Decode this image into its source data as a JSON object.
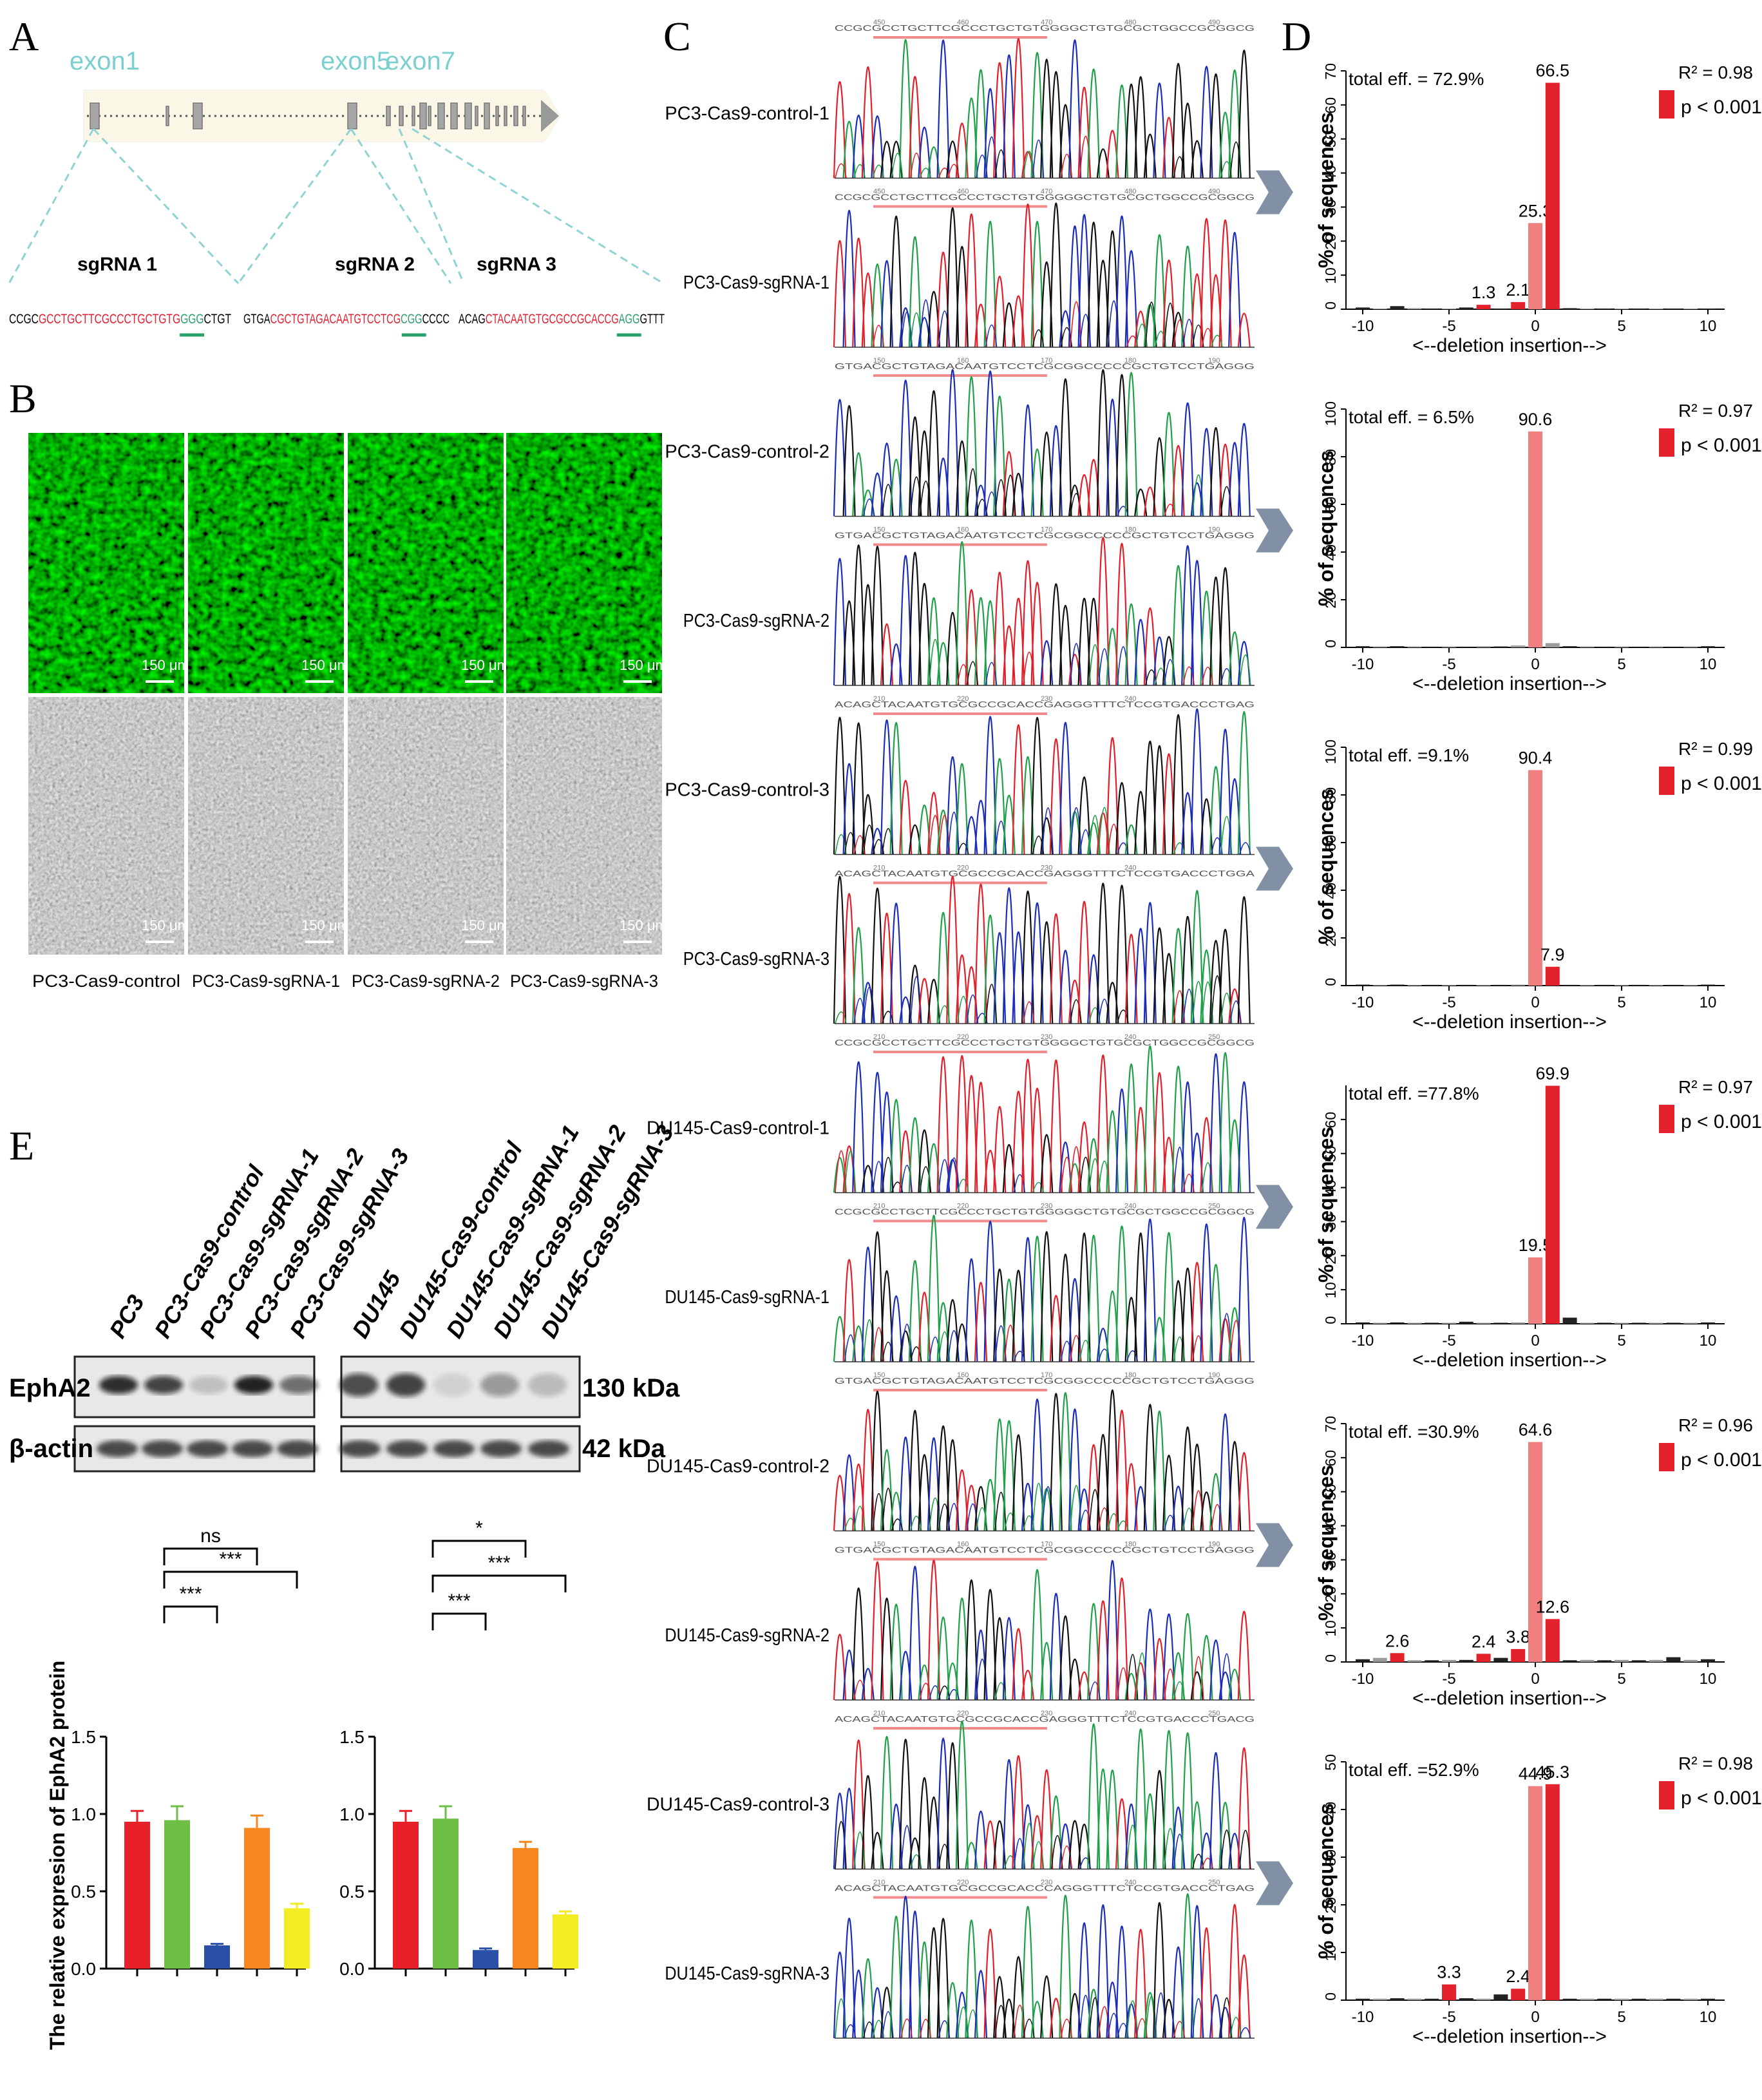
{
  "panels": {
    "A": "A",
    "B": "B",
    "C": "C",
    "D": "D",
    "E": "E"
  },
  "panel_a": {
    "exon_labels": [
      "exon1",
      "exon5",
      "exon7"
    ],
    "sgrnas": [
      {
        "label": "sgRNA 1",
        "pre": "CCGC",
        "target": "GCCTGCTTCGCCCTGCTGTG",
        "pam": "GGG",
        "post": "CTGT"
      },
      {
        "label": "sgRNA 2",
        "pre": "GTGA",
        "target": "CGCTGTAGACAATGTCCTCG",
        "pam": "CGG",
        "post": "CCCC"
      },
      {
        "label": "sgRNA 3",
        "pre": "ACAG",
        "target": "CTACAATGTGCGCCGCACCG",
        "pam": "AGG",
        "post": "GTTT"
      }
    ]
  },
  "panel_b": {
    "scale_bar": "150 μm",
    "labels": [
      "PC3-Cas9-control",
      "PC3-Cas9-sgRNA-1",
      "PC3-Cas9-sgRNA-2",
      "PC3-Cas9-sgRNA-3"
    ]
  },
  "panel_c": {
    "traces": [
      "PC3-Cas9-control-1",
      "PC3-Cas9-sgRNA-1",
      "PC3-Cas9-control-2",
      "PC3-Cas9-sgRNA-2",
      "PC3-Cas9-control-3",
      "PC3-Cas9-sgRNA-3",
      "DU145-Cas9-control-1",
      "DU145-Cas9-sgRNA-1",
      "DU145-Cas9-control-2",
      "DU145-Cas9-sgRNA-2",
      "DU145-Cas9-control-3",
      "DU145-Cas9-sgRNA-3"
    ],
    "seq_headers": [
      {
        "seq": "CCGCGCCTGCTTCGCCCTGCTGTGGGGCTGTGCGCTGGCCGCGGCG",
        "ticks": [
          "450",
          "460",
          "470",
          "480",
          "490"
        ]
      },
      {
        "seq": "CCGCGCCTGCTTCGCCCTGCTGTGGGGGCTGTGCGCTGGCCGCGGCG",
        "ticks": [
          "450",
          "460",
          "470",
          "480",
          "490"
        ]
      },
      {
        "seq": "GTGACGCTGTAGACAATGTCCTCGCGGCCCCCGCTGTCCTGAGGG",
        "ticks": [
          "150",
          "160",
          "170",
          "180",
          "190"
        ]
      },
      {
        "seq": "GTGACGCTGTAGACAATGTCCTCGCGGCCCCCGCTGTCCTGAGGG",
        "ticks": [
          "150",
          "160",
          "170",
          "180",
          "190"
        ]
      },
      {
        "seq": "ACAGCTACAATGTGCGCCGCACCGAGGGTTTCTCCGTGACCCTGAG",
        "ticks": [
          "210",
          "220",
          "230",
          "240"
        ]
      },
      {
        "seq": "ACAGCTACAATGTGCGCCGCACCGAGGGTTTCTCCGTGACCCTGGA",
        "ticks": [
          "210",
          "220",
          "230",
          "240"
        ]
      },
      {
        "seq": "CCGCGCCTGCTTCGCCCTGCTGTGGGGCTGTGCGCTGGCCGCGGCG",
        "ticks": [
          "210",
          "220",
          "230",
          "240",
          "250"
        ]
      },
      {
        "seq": "CCGCGCCTGCTTCGCCCTGCTGTGGGGGCTGTGCGCTGGCCGCGGCG",
        "ticks": [
          "210",
          "220",
          "230",
          "240",
          "250"
        ]
      },
      {
        "seq": "GTGACGCTGTAGACAATGTCCTCGCGGCCCCCGCTGTCCTGAGGG",
        "ticks": [
          "150",
          "160",
          "170",
          "180",
          "190"
        ]
      },
      {
        "seq": "GTGACGCTGTAGACAATGTCCTCGCGGCCCCCGCTGTCCTGAGGG",
        "ticks": [
          "150",
          "160",
          "170",
          "180",
          "190"
        ]
      },
      {
        "seq": "ACAGCTACAATGTGCGCCGCACCGAGGGTTTCTCCGTGACCCTGACG",
        "ticks": [
          "210",
          "220",
          "230",
          "240",
          "250"
        ]
      },
      {
        "seq": "ACAGCTACAATGTGCGCCGCACCCAGGGTTTCTCCGTGACCCTGAG",
        "ticks": [
          "210",
          "220",
          "230",
          "240",
          "250"
        ]
      }
    ]
  },
  "chart_data": [
    {
      "id": "D1",
      "type": "bar",
      "title": "",
      "xlabel": "<--deletion  insertion-->",
      "ylabel": "% of sequences",
      "x": [
        -10,
        -9,
        -8,
        -7,
        -6,
        -5,
        -4,
        -3,
        -2,
        -1,
        0,
        1,
        2,
        3,
        4,
        5,
        6,
        7,
        8,
        9,
        10
      ],
      "values": [
        0.5,
        0.2,
        0.9,
        0.3,
        0.2,
        0.2,
        0.5,
        1.3,
        0.2,
        2.1,
        25.3,
        66.5,
        0.3,
        0.2,
        0.2,
        0.2,
        0.2,
        0.2,
        0.2,
        0.2,
        0.2
      ],
      "red_indices": [
        7,
        9,
        11
      ],
      "pink_indices": [
        10
      ],
      "labels": {
        "7": "1.3",
        "9": "2.1",
        "10": "25.3",
        "11": "66.5"
      },
      "ylim": [
        0,
        70
      ],
      "yticks": [
        0,
        10,
        20,
        30,
        40,
        50,
        60,
        70
      ],
      "xticks": [
        -10,
        -5,
        0,
        5,
        10
      ],
      "total_eff": "total eff. = 72.9%",
      "r2": "R² = 0.98",
      "p": "p < 0.001"
    },
    {
      "id": "D2",
      "type": "bar",
      "title": "",
      "xlabel": "<--deletion  insertion-->",
      "ylabel": "% of sequences",
      "x": [
        -10,
        -9,
        -8,
        -7,
        -6,
        -5,
        -4,
        -3,
        -2,
        -1,
        0,
        1,
        2,
        3,
        4,
        5,
        6,
        7,
        8,
        9,
        10
      ],
      "values": [
        0.5,
        0.4,
        0.5,
        0.4,
        0.3,
        0.4,
        0.3,
        0.5,
        0.4,
        0.8,
        90.6,
        1.8,
        0.5,
        0.4,
        0.3,
        0.4,
        0.3,
        0.4,
        0.3,
        0.4,
        0.5
      ],
      "red_indices": [],
      "pink_indices": [
        10
      ],
      "labels": {
        "10": "90.6"
      },
      "ylim": [
        0,
        100
      ],
      "yticks": [
        0,
        20,
        40,
        60,
        80,
        100
      ],
      "xticks": [
        -10,
        -5,
        0,
        5,
        10
      ],
      "total_eff": "total eff. = 6.5%",
      "r2": "R² = 0.97",
      "p": "p < 0.001"
    },
    {
      "id": "D3",
      "type": "bar",
      "title": "",
      "xlabel": "<--deletion  insertion-->",
      "ylabel": "% of sequences",
      "x": [
        -10,
        -9,
        -8,
        -7,
        -6,
        -5,
        -4,
        -3,
        -2,
        -1,
        0,
        1,
        2,
        3,
        4,
        5,
        6,
        7,
        8,
        9,
        10
      ],
      "values": [
        0.4,
        0.3,
        0.4,
        0.3,
        0.3,
        0.3,
        0.3,
        0.3,
        0.3,
        0.4,
        90.4,
        7.9,
        0.3,
        0.3,
        0.3,
        0.3,
        0.3,
        0.3,
        0.3,
        0.3,
        0.4
      ],
      "red_indices": [
        11
      ],
      "pink_indices": [
        10
      ],
      "labels": {
        "10": "90.4",
        "11": "7.9"
      },
      "ylim": [
        0,
        100
      ],
      "yticks": [
        0,
        20,
        40,
        60,
        80,
        100
      ],
      "xticks": [
        -10,
        -5,
        0,
        5,
        10
      ],
      "total_eff": "total eff. =9.1%",
      "r2": "R² = 0.99",
      "p": "p < 0.001"
    },
    {
      "id": "D4",
      "type": "bar",
      "title": "",
      "xlabel": "<--deletion  insertion-->",
      "ylabel": "% of sequences",
      "x": [
        -10,
        -9,
        -8,
        -7,
        -6,
        -5,
        -4,
        -3,
        -2,
        -1,
        0,
        1,
        2,
        3,
        4,
        5,
        6,
        7,
        8,
        9,
        10
      ],
      "values": [
        0.4,
        0.3,
        0.4,
        0.3,
        0.3,
        0.3,
        0.6,
        0.3,
        0.3,
        0.4,
        19.5,
        69.9,
        1.8,
        0.3,
        0.3,
        0.3,
        0.3,
        0.3,
        0.3,
        0.3,
        0.4
      ],
      "red_indices": [
        11
      ],
      "pink_indices": [
        10
      ],
      "labels": {
        "10": "19.5",
        "11": "69.9"
      },
      "ylim": [
        0,
        70
      ],
      "yticks": [
        0,
        10,
        20,
        30,
        40,
        50,
        60
      ],
      "xticks": [
        -10,
        -5,
        0,
        5,
        10
      ],
      "total_eff": "total eff. =77.8%",
      "r2": "R² = 0.97",
      "p": "p < 0.001"
    },
    {
      "id": "D5",
      "type": "bar",
      "title": "",
      "xlabel": "<--deletion  insertion-->",
      "ylabel": "% of sequences",
      "x": [
        -10,
        -9,
        -8,
        -7,
        -6,
        -5,
        -4,
        -3,
        -2,
        -1,
        0,
        1,
        2,
        3,
        4,
        5,
        6,
        7,
        8,
        9,
        10
      ],
      "values": [
        0.8,
        1.2,
        2.6,
        0.5,
        0.5,
        0.6,
        0.6,
        2.4,
        1.2,
        3.8,
        64.6,
        12.6,
        0.5,
        0.6,
        0.5,
        0.6,
        0.5,
        0.6,
        1.4,
        0.6,
        0.8
      ],
      "red_indices": [
        2,
        7,
        9,
        11
      ],
      "pink_indices": [
        10
      ],
      "labels": {
        "2": "2.6",
        "7": "2.4",
        "9": "3.8",
        "10": "64.6",
        "11": "12.6"
      },
      "ylim": [
        0,
        70
      ],
      "yticks": [
        0,
        10,
        20,
        30,
        40,
        50,
        60,
        70
      ],
      "xticks": [
        -10,
        -5,
        0,
        5,
        10
      ],
      "total_eff": "total eff. =30.9%",
      "r2": "R² = 0.96",
      "p": "p < 0.001"
    },
    {
      "id": "D6",
      "type": "bar",
      "title": "",
      "xlabel": "<--deletion  insertion-->",
      "ylabel": "% of sequences",
      "x": [
        -10,
        -9,
        -8,
        -7,
        -6,
        -5,
        -4,
        -3,
        -2,
        -1,
        0,
        1,
        2,
        3,
        4,
        5,
        6,
        7,
        8,
        9,
        10
      ],
      "values": [
        0.3,
        0.3,
        0.4,
        0.3,
        0.3,
        3.3,
        0.4,
        0.3,
        1.2,
        2.4,
        44.9,
        45.3,
        0.3,
        0.3,
        0.3,
        0.3,
        0.3,
        0.3,
        0.3,
        0.3,
        0.3
      ],
      "red_indices": [
        5,
        9,
        11
      ],
      "pink_indices": [
        10
      ],
      "labels": {
        "5": "3.3",
        "9": "2.4",
        "10": "44.9",
        "11": "45.3"
      },
      "ylim": [
        0,
        50
      ],
      "yticks": [
        0,
        10,
        20,
        30,
        40,
        50
      ],
      "xticks": [
        -10,
        -5,
        0,
        5,
        10
      ],
      "total_eff": "total eff. =52.9%",
      "r2": "R² = 0.98",
      "p": "p < 0.001"
    },
    {
      "id": "E1",
      "type": "bar",
      "title": "",
      "xlabel": "",
      "ylabel": "The relative expresion of EphA2 protein",
      "categories": [
        "PC3",
        "PC3-Cas9-control",
        "PC3-Cas9-sgRNA-1",
        "PC3-Cas9-sgRNA-2",
        "PC3-Cas9-sgRNA-3"
      ],
      "values": [
        0.95,
        0.96,
        0.15,
        0.91,
        0.39
      ],
      "errors": [
        0.07,
        0.09,
        0.01,
        0.08,
        0.03
      ],
      "colors": [
        "#e8202a",
        "#6dbe45",
        "#2a4fa8",
        "#f7861e",
        "#f4ec22"
      ],
      "ylim": [
        0,
        1.5
      ],
      "yticks": [
        "0.0",
        "0.5",
        "1.0",
        "1.5"
      ],
      "sig": [
        {
          "from": 1,
          "to": 2,
          "text": "***"
        },
        {
          "from": 1,
          "to": 4,
          "text": "***"
        },
        {
          "from": 1,
          "to": 3,
          "text": "ns"
        }
      ]
    },
    {
      "id": "E2",
      "type": "bar",
      "title": "",
      "xlabel": "",
      "ylabel": "",
      "categories": [
        "DU145",
        "DU145-Cas9-control",
        "DU145-Cas9-sgRNA-1",
        "DU145-Cas9-sgRNA-2",
        "DU145-Cas9-sgRNA-3"
      ],
      "values": [
        0.95,
        0.97,
        0.12,
        0.78,
        0.35
      ],
      "errors": [
        0.07,
        0.08,
        0.01,
        0.04,
        0.02
      ],
      "colors": [
        "#e8202a",
        "#6dbe45",
        "#2a4fa8",
        "#f7861e",
        "#f4ec22"
      ],
      "ylim": [
        0,
        1.5
      ],
      "yticks": [
        "0.0",
        "0.5",
        "1.0",
        "1.5"
      ],
      "sig": [
        {
          "from": 1,
          "to": 2,
          "text": "***"
        },
        {
          "from": 1,
          "to": 4,
          "text": "***"
        },
        {
          "from": 1,
          "to": 3,
          "text": "*"
        }
      ]
    }
  ],
  "panel_e": {
    "lanes_left": [
      "PC3",
      "PC3-Cas9-control",
      "PC3-Cas9-sgRNA-1",
      "PC3-Cas9-sgRNA-2",
      "PC3-Cas9-sgRNA-3"
    ],
    "lanes_right": [
      "DU145",
      "DU145-Cas9-control",
      "DU145-Cas9-sgRNA-1",
      "DU145-Cas9-sgRNA-2",
      "DU145-Cas9-sgRNA-3"
    ],
    "band1": "EphA2",
    "band2": "β-actin",
    "kda1": "130 kDa",
    "kda2": "42 kDa",
    "ephA2_left": [
      0.85,
      0.75,
      0.18,
      0.9,
      0.55
    ],
    "ephA2_right": [
      0.7,
      0.75,
      0.1,
      0.35,
      0.2
    ]
  }
}
